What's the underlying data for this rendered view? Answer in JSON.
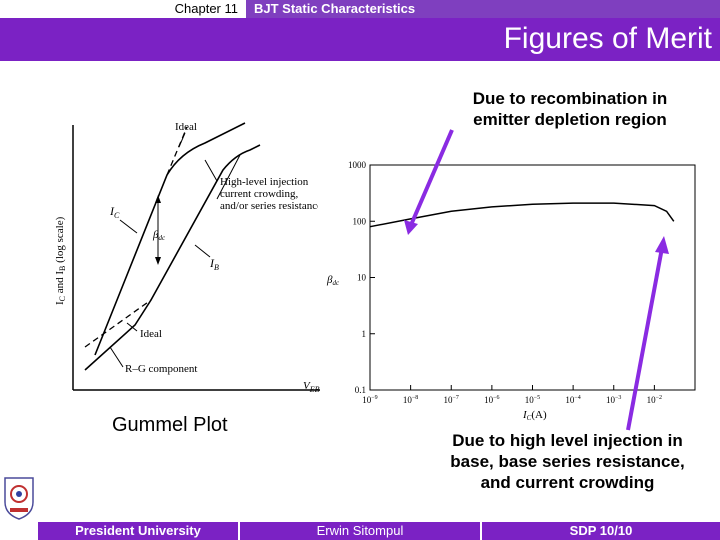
{
  "header": {
    "chapter": "Chapter 11",
    "topic": "BJT Static Characteristics"
  },
  "title": "Figures of Merit",
  "notes": {
    "top": [
      "Due to recombination in",
      "emitter depletion region"
    ],
    "bottom": [
      "Due to high level injection in",
      "base, base series resistance,",
      "and current crowding"
    ]
  },
  "left_figure": {
    "caption": "Gummel Plot",
    "labels": {
      "ideal_top": "Ideal",
      "high_level_1": "High-level injection",
      "high_level_2": "current crowding,",
      "high_level_3": "and/or series resistance",
      "ic": "I",
      "ic_sub": "C",
      "beta": "β",
      "beta_sub": "dc",
      "ib": "I",
      "ib_sub": "B",
      "ideal_bottom": "Ideal",
      "rg": "R–G component",
      "yaxis": "I_C and I_B (log scale)",
      "xaxis": "V",
      "xaxis_sub": "EB"
    }
  },
  "right_figure": {
    "ylabel": "β",
    "ylabel_sub": "dc",
    "xlabel": "I",
    "xlabel_sub": "C",
    "xlabel_unit": "(A)",
    "yticks": [
      "1000",
      "100",
      "10",
      "1",
      "0.1"
    ],
    "xticks": [
      "10",
      "10",
      "10",
      "10",
      "10",
      "10",
      "10",
      "10"
    ],
    "xtick_exps": [
      "−9",
      "−8",
      "−7",
      "−6",
      "−5",
      "−4",
      "−3",
      "−2"
    ]
  },
  "chart_data": {
    "type": "line",
    "xlabel": "I_C (A)",
    "ylabel": "β_dc",
    "x_scale": "log",
    "y_scale": "log",
    "xlim": [
      1e-09,
      0.1
    ],
    "ylim": [
      0.1,
      1000
    ],
    "series": [
      {
        "x": [
          1e-09,
          1e-08,
          1e-07,
          1e-06,
          1e-05,
          0.0001,
          0.001,
          0.01,
          0.02,
          0.03
        ],
        "y": [
          80,
          110,
          150,
          180,
          200,
          210,
          210,
          190,
          150,
          100
        ]
      }
    ]
  },
  "footer": {
    "left": "President University",
    "center": "Erwin Sitompul",
    "right": "SDP 10/10"
  },
  "colors": {
    "accent": "#7b22c4",
    "arrow": "#8a2be2"
  }
}
